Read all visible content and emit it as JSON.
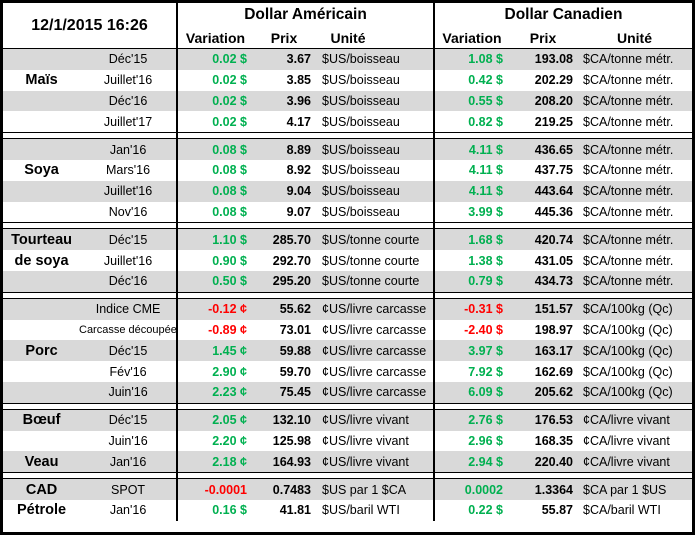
{
  "report": {
    "timestamp": "12/1/2015 16:26"
  },
  "sections": {
    "us_title": "Dollar Américain",
    "ca_title": "Dollar Canadien"
  },
  "columns": {
    "variation": "Variation",
    "prix": "Prix",
    "unite": "Unité"
  },
  "colors": {
    "positive_green": "#00B050",
    "negative_red": "#FF0000",
    "row_stripe_gray": "#D9D9D9",
    "border_black": "#000000"
  },
  "groups": [
    {
      "rows": [
        {
          "month": "Déc'15",
          "us_var": "0.02 $",
          "us_prix": "3.67",
          "us_unit": "$US/boisseau",
          "ca_var": "1.08 $",
          "ca_prix": "193.08",
          "ca_unit": "$CA/tonne métr."
        },
        {
          "label": "Maïs",
          "month": "Juillet'16",
          "us_var": "0.02 $",
          "us_prix": "3.85",
          "us_unit": "$US/boisseau",
          "ca_var": "0.42 $",
          "ca_prix": "202.29",
          "ca_unit": "$CA/tonne métr."
        },
        {
          "month": "Déc'16",
          "us_var": "0.02 $",
          "us_prix": "3.96",
          "us_unit": "$US/boisseau",
          "ca_var": "0.55 $",
          "ca_prix": "208.20",
          "ca_unit": "$CA/tonne métr."
        },
        {
          "month": "Juillet'17",
          "us_var": "0.02 $",
          "us_prix": "4.17",
          "us_unit": "$US/boisseau",
          "ca_var": "0.82 $",
          "ca_prix": "219.25",
          "ca_unit": "$CA/tonne métr."
        }
      ]
    },
    {
      "rows": [
        {
          "month": "Jan'16",
          "us_var": "0.08 $",
          "us_prix": "8.89",
          "us_unit": "$US/boisseau",
          "ca_var": "4.11 $",
          "ca_prix": "436.65",
          "ca_unit": "$CA/tonne métr."
        },
        {
          "label": "Soya",
          "month": "Mars'16",
          "us_var": "0.08 $",
          "us_prix": "8.92",
          "us_unit": "$US/boisseau",
          "ca_var": "4.11 $",
          "ca_prix": "437.75",
          "ca_unit": "$CA/tonne métr."
        },
        {
          "month": "Juillet'16",
          "us_var": "0.08 $",
          "us_prix": "9.04",
          "us_unit": "$US/boisseau",
          "ca_var": "4.11 $",
          "ca_prix": "443.64",
          "ca_unit": "$CA/tonne métr."
        },
        {
          "month": "Nov'16",
          "us_var": "0.08 $",
          "us_prix": "9.07",
          "us_unit": "$US/boisseau",
          "ca_var": "3.99 $",
          "ca_prix": "445.36",
          "ca_unit": "$CA/tonne métr."
        }
      ]
    },
    {
      "rows": [
        {
          "label": "Tourteau",
          "month": "Déc'15",
          "us_var": "1.10 $",
          "us_prix": "285.70",
          "us_unit": "$US/tonne courte",
          "ca_var": "1.68 $",
          "ca_prix": "420.74",
          "ca_unit": "$CA/tonne métr."
        },
        {
          "label": "de soya",
          "month": "Juillet'16",
          "us_var": "0.90 $",
          "us_prix": "292.70",
          "us_unit": "$US/tonne courte",
          "ca_var": "1.38 $",
          "ca_prix": "431.05",
          "ca_unit": "$CA/tonne métr."
        },
        {
          "month": "Déc'16",
          "us_var": "0.50 $",
          "us_prix": "295.20",
          "us_unit": "$US/tonne courte",
          "ca_var": "0.79 $",
          "ca_prix": "434.73",
          "ca_unit": "$CA/tonne métr."
        }
      ]
    },
    {
      "rows": [
        {
          "month": "Indice CME",
          "us_var": "-0.12 ¢",
          "us_prix": "55.62",
          "us_unit": "¢US/livre carcasse",
          "ca_var": "-0.31 $",
          "ca_prix": "151.57",
          "ca_unit": "$CA/100kg (Qc)"
        },
        {
          "month": "Carcasse découpée",
          "us_var": "-0.89 ¢",
          "us_prix": "73.01",
          "us_unit": "¢US/livre carcasse",
          "ca_var": "-2.40 $",
          "ca_prix": "198.97",
          "ca_unit": "$CA/100kg (Qc)"
        },
        {
          "label": "Porc",
          "month": "Déc'15",
          "us_var": "1.45 ¢",
          "us_prix": "59.88",
          "us_unit": "¢US/livre carcasse",
          "ca_var": "3.97 $",
          "ca_prix": "163.17",
          "ca_unit": "$CA/100kg (Qc)"
        },
        {
          "month": "Fév'16",
          "us_var": "2.90 ¢",
          "us_prix": "59.70",
          "us_unit": "¢US/livre carcasse",
          "ca_var": "7.92 $",
          "ca_prix": "162.69",
          "ca_unit": "$CA/100kg (Qc)"
        },
        {
          "month": "Juin'16",
          "us_var": "2.23 ¢",
          "us_prix": "75.45",
          "us_unit": "¢US/livre carcasse",
          "ca_var": "6.09 $",
          "ca_prix": "205.62",
          "ca_unit": "$CA/100kg (Qc)"
        }
      ]
    },
    {
      "rows": [
        {
          "label": "Bœuf",
          "month": "Déc'15",
          "us_var": "2.05 ¢",
          "us_prix": "132.10",
          "us_unit": "¢US/livre vivant",
          "ca_var": "2.76 $",
          "ca_prix": "176.53",
          "ca_unit": "¢CA/livre vivant"
        },
        {
          "month": "Juin'16",
          "us_var": "2.20 ¢",
          "us_prix": "125.98",
          "us_unit": "¢US/livre vivant",
          "ca_var": "2.96 $",
          "ca_prix": "168.35",
          "ca_unit": "¢CA/livre vivant"
        },
        {
          "label": "Veau",
          "month": "Jan'16",
          "us_var": "2.18 ¢",
          "us_prix": "164.93",
          "us_unit": "¢US/livre vivant",
          "ca_var": "2.94 $",
          "ca_prix": "220.40",
          "ca_unit": "¢CA/livre vivant"
        }
      ]
    },
    {
      "rows": [
        {
          "label": "CAD",
          "month": "SPOT",
          "us_var": "-0.0001",
          "us_prix": "0.7483",
          "us_unit": "$US par 1 $CA",
          "ca_var": "0.0002",
          "ca_prix": "1.3364",
          "ca_unit": "$CA par 1 $US"
        },
        {
          "label": "Pétrole",
          "month": "Jan'16",
          "us_var": "0.16 $",
          "us_prix": "41.81",
          "us_unit": "$US/baril WTI",
          "ca_var": "0.22 $",
          "ca_prix": "55.87",
          "ca_unit": "$CA/baril WTI"
        }
      ]
    }
  ]
}
